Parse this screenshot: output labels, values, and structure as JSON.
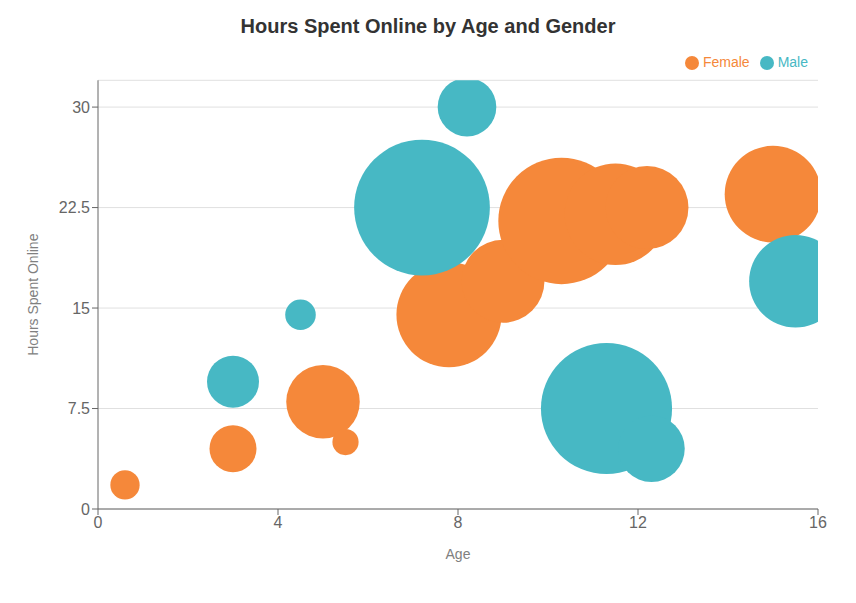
{
  "chart_data": {
    "type": "scatter",
    "title": "Hours Spent Online by Age and Gender",
    "xlabel": "Age",
    "ylabel": "Hours Spent Online",
    "xlim": [
      0,
      16
    ],
    "ylim": [
      0,
      32
    ],
    "xticks": [
      0,
      4,
      8,
      12,
      16
    ],
    "yticks": [
      0,
      7.5,
      15,
      22.5,
      30
    ],
    "grid": true,
    "legend": "upper right",
    "series": [
      {
        "name": "Female",
        "color": "#F5883A",
        "x": [
          0.6,
          3.0,
          5.0,
          5.5,
          7.8,
          9.0,
          10.3,
          11.5,
          12.2,
          15.0
        ],
        "values": [
          1.8,
          4.5,
          8.0,
          5.0,
          14.5,
          17.0,
          21.5,
          22.0,
          22.5,
          23.5
        ],
        "size": [
          350,
          900,
          2200,
          280,
          4500,
          2800,
          6500,
          4200,
          2800,
          3800
        ]
      },
      {
        "name": "Male",
        "color": "#47B8C4",
        "x": [
          3.0,
          4.5,
          7.2,
          8.2,
          11.3,
          12.3,
          15.5
        ],
        "values": [
          9.5,
          14.5,
          22.5,
          30.0,
          7.5,
          4.5,
          17.0
        ],
        "size": [
          1100,
          380,
          7500,
          1400,
          7000,
          1800,
          3500
        ]
      }
    ]
  }
}
